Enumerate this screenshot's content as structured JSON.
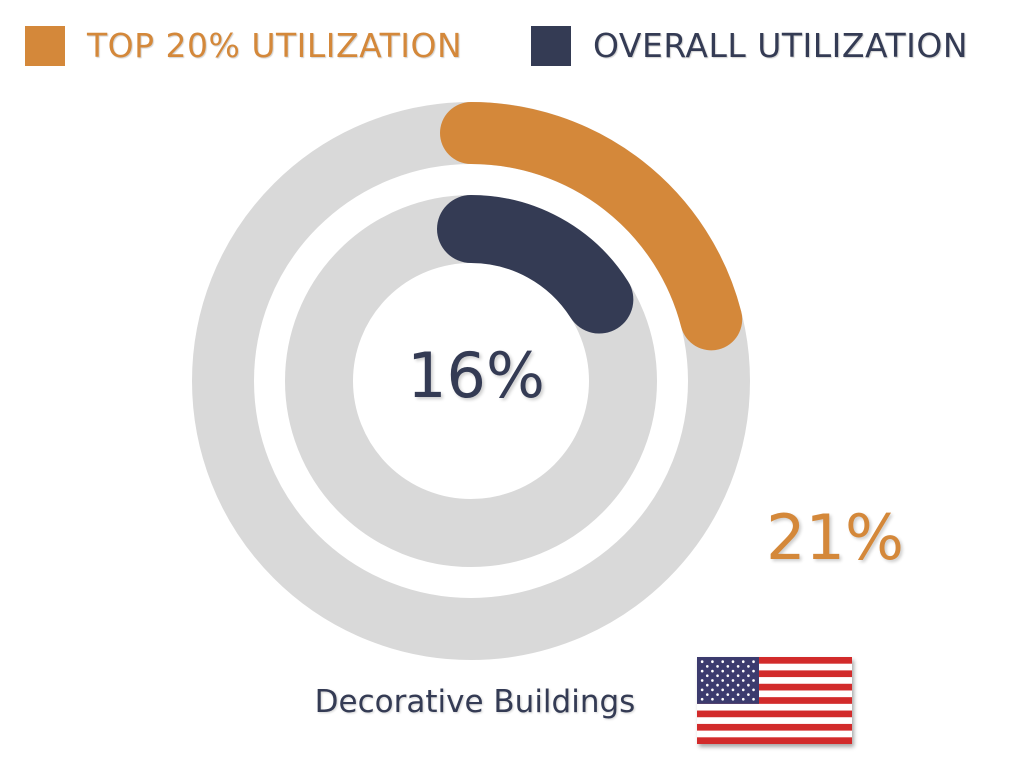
{
  "legend": [
    {
      "label": "TOP 20% UTILIZATION",
      "color": "#D4883A"
    },
    {
      "label": "OVERALL UTILIZATION",
      "color": "#343B54"
    }
  ],
  "chart_data": {
    "type": "radial-bar",
    "series": [
      {
        "name": "TOP 20% UTILIZATION",
        "value": 21,
        "max": 100,
        "value_label": "21%",
        "color": "#D4883A"
      },
      {
        "name": "OVERALL UTILIZATION",
        "value": 16,
        "max": 100,
        "value_label": "16%",
        "color": "#343B54"
      }
    ],
    "category": "Decorative Buildings",
    "track_color": "#D9D9D9"
  },
  "labels": {
    "center_value": "16%",
    "outer_value": "21%",
    "category": "Decorative Buildings"
  },
  "icons": {
    "flag": "us-flag-icon"
  }
}
